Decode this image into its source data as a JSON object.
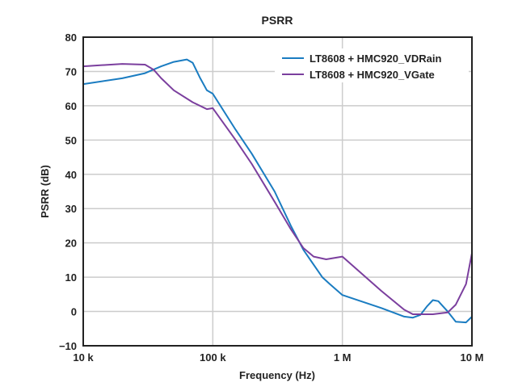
{
  "chart_data": {
    "type": "line",
    "title": "PSRR",
    "xlabel": "Frequency (Hz)",
    "ylabel": "PSRR (dB)",
    "xscale": "log",
    "xlim": [
      10000,
      10000000
    ],
    "ylim": [
      -10,
      80
    ],
    "grid": true,
    "legend_position": "top-right",
    "x_ticks": [
      {
        "value": 10000,
        "label": "10 k"
      },
      {
        "value": 100000,
        "label": "100 k"
      },
      {
        "value": 1000000,
        "label": "1 M"
      },
      {
        "value": 10000000,
        "label": "10 M"
      }
    ],
    "y_ticks": [
      {
        "value": 80,
        "label": "80"
      },
      {
        "value": 70,
        "label": "70"
      },
      {
        "value": 60,
        "label": "60"
      },
      {
        "value": 50,
        "label": "50"
      },
      {
        "value": 40,
        "label": "40"
      },
      {
        "value": 30,
        "label": "30"
      },
      {
        "value": 20,
        "label": "20"
      },
      {
        "value": 10,
        "label": "10"
      },
      {
        "value": 0,
        "label": "0"
      },
      {
        "value": -10,
        "label": "−10"
      }
    ],
    "series": [
      {
        "name": "LT8608 + HMC920_VDRain",
        "color": "#1a7cc1",
        "points": [
          [
            10000,
            66.3
          ],
          [
            20000,
            68
          ],
          [
            30000,
            69.5
          ],
          [
            40000,
            71.5
          ],
          [
            50000,
            72.8
          ],
          [
            63000,
            73.5
          ],
          [
            70000,
            72.5
          ],
          [
            80000,
            68
          ],
          [
            90000,
            64.5
          ],
          [
            100000,
            63.5
          ],
          [
            150000,
            53
          ],
          [
            200000,
            46
          ],
          [
            300000,
            35
          ],
          [
            400000,
            25
          ],
          [
            500000,
            18
          ],
          [
            700000,
            10
          ],
          [
            800000,
            8
          ],
          [
            1000000,
            4.8
          ],
          [
            2000000,
            1
          ],
          [
            3000000,
            -1.5
          ],
          [
            3500000,
            -1.8
          ],
          [
            4000000,
            -1
          ],
          [
            4500000,
            1.5
          ],
          [
            5000000,
            3.3
          ],
          [
            5500000,
            3
          ],
          [
            6500000,
            0
          ],
          [
            7500000,
            -3
          ],
          [
            9000000,
            -3.2
          ],
          [
            10000000,
            -1.5
          ]
        ]
      },
      {
        "name": "LT8608 + HMC920_VGate",
        "color": "#7b3f9e",
        "points": [
          [
            10000,
            71.5
          ],
          [
            20000,
            72.2
          ],
          [
            30000,
            72
          ],
          [
            35000,
            70.5
          ],
          [
            40000,
            68
          ],
          [
            50000,
            64.5
          ],
          [
            70000,
            61
          ],
          [
            90000,
            59
          ],
          [
            100000,
            59.3
          ],
          [
            150000,
            50
          ],
          [
            200000,
            43
          ],
          [
            300000,
            32
          ],
          [
            400000,
            24
          ],
          [
            500000,
            18.5
          ],
          [
            600000,
            16
          ],
          [
            750000,
            15.2
          ],
          [
            1000000,
            16
          ],
          [
            2000000,
            6
          ],
          [
            3000000,
            0.5
          ],
          [
            3500000,
            -0.8
          ],
          [
            5000000,
            -0.8
          ],
          [
            6500000,
            -0.3
          ],
          [
            7500000,
            2
          ],
          [
            9000000,
            8
          ],
          [
            10000000,
            17
          ]
        ]
      }
    ]
  }
}
